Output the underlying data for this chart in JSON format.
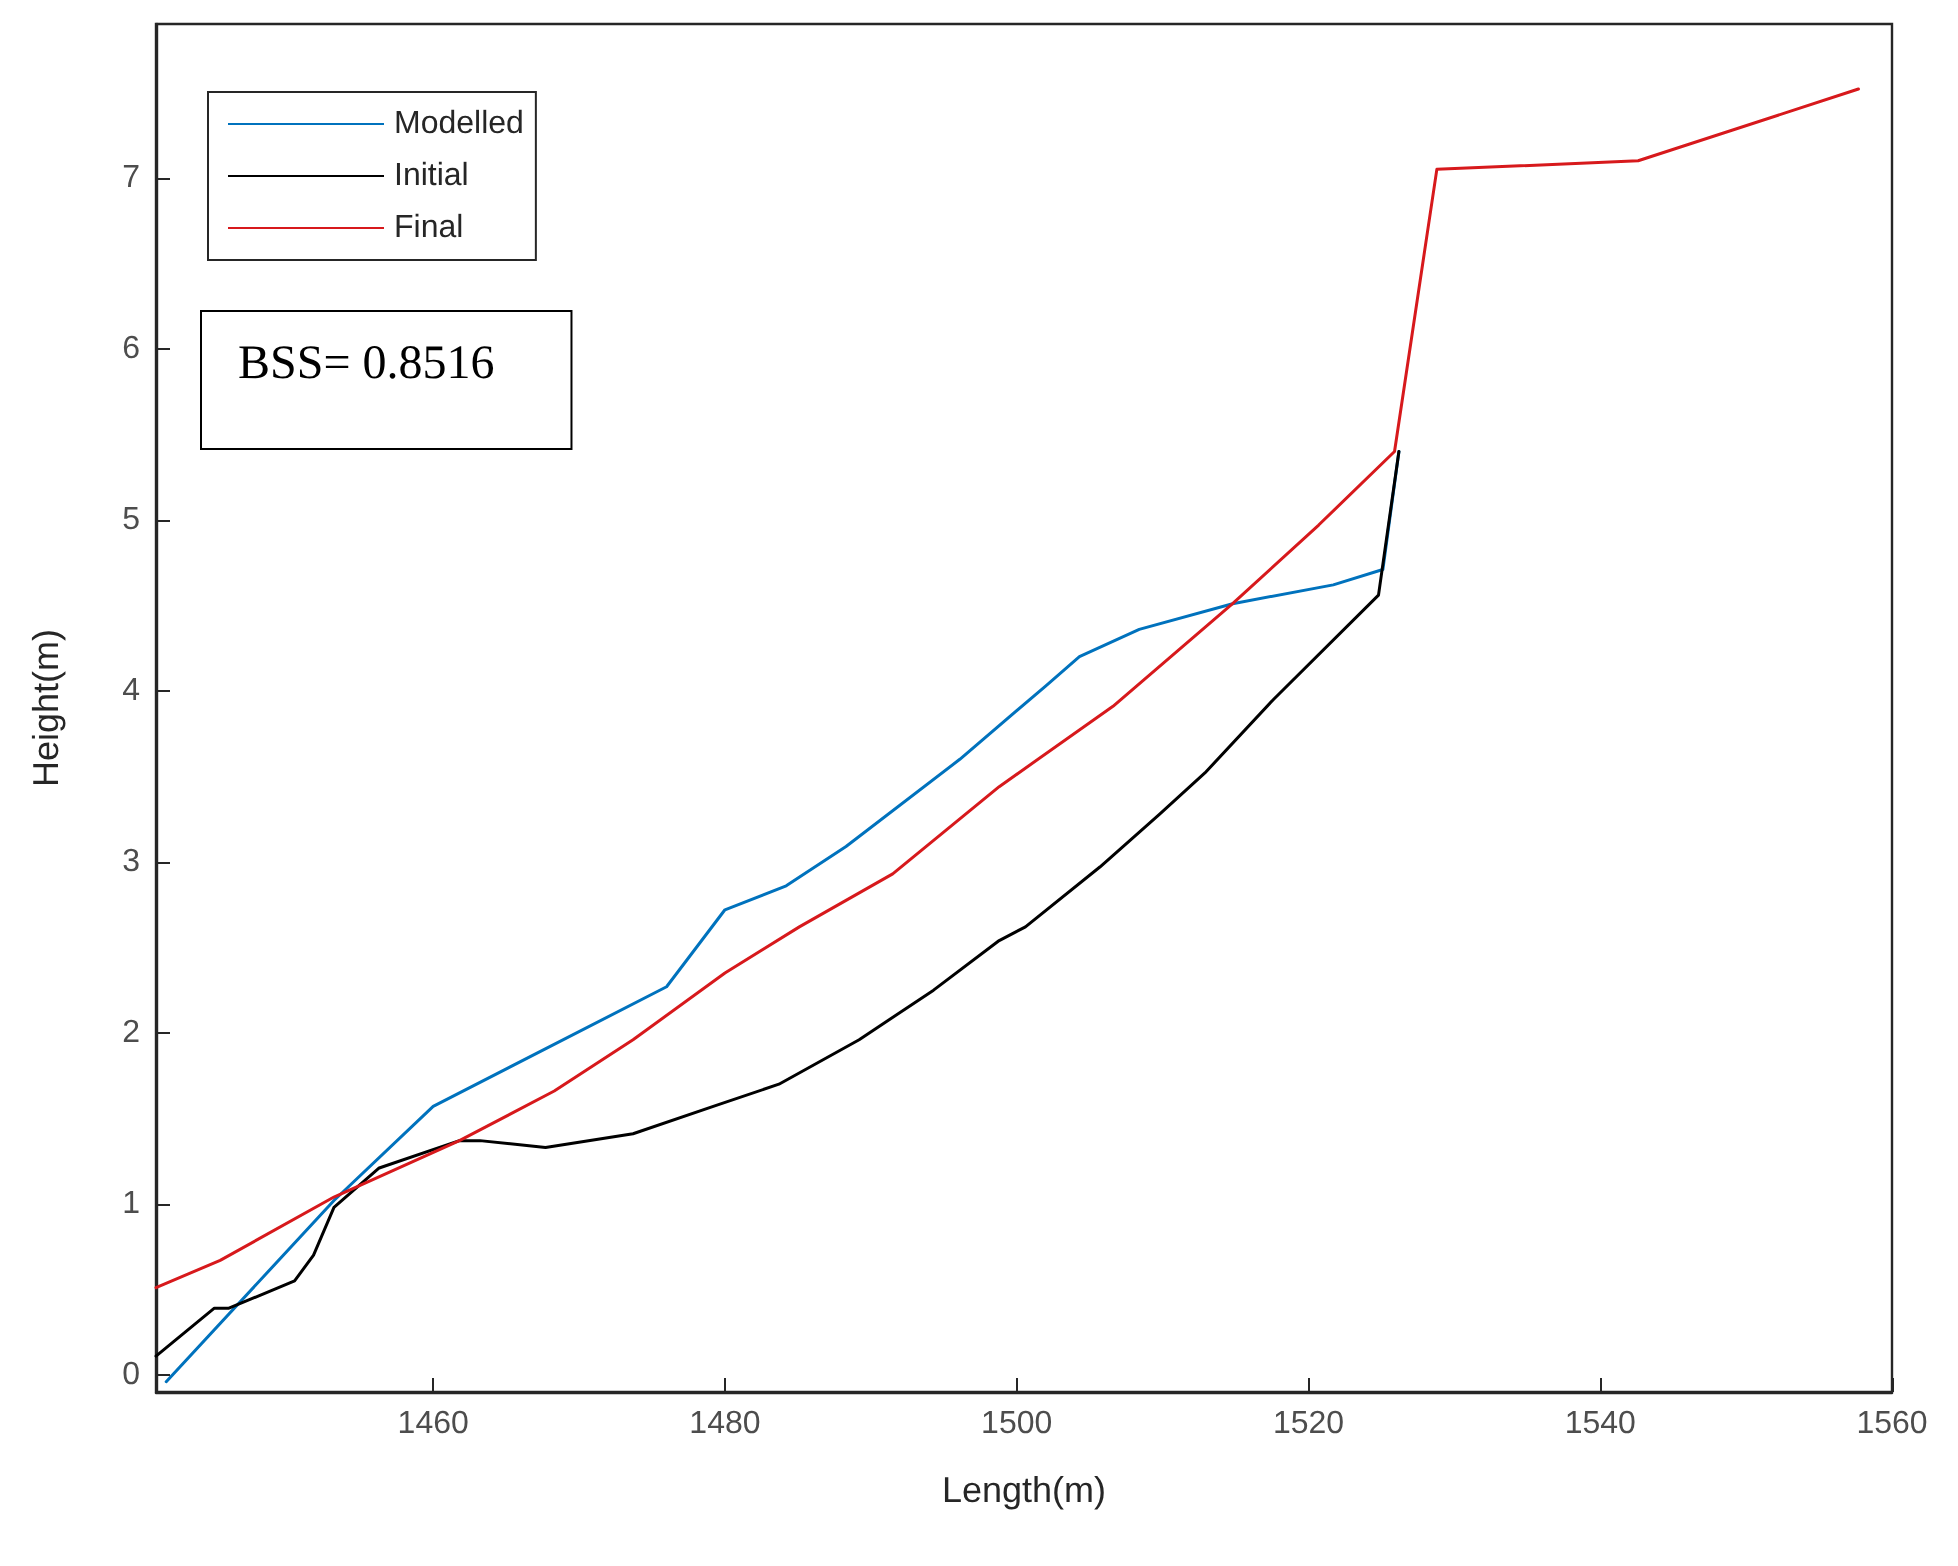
{
  "chart_data": {
    "type": "line",
    "xlabel": "Length(m)",
    "ylabel": "Height(m)",
    "xlim": [
      1441,
      1560
    ],
    "xticks": [
      1460,
      1480,
      1500,
      1520,
      1540,
      1560
    ],
    "ylim": [
      -0.1,
      7.9
    ],
    "yticks": [
      0,
      1,
      2,
      3,
      4,
      5,
      6,
      7
    ],
    "grid": false,
    "legend": "top left",
    "marker": "none",
    "line_style": "solid",
    "annotations": [
      "BSS= 0.8516"
    ],
    "series": [
      {
        "name": "Modelled",
        "color": "#0072bd",
        "x": [
          1441.7,
          1453.2,
          1460,
          1476,
          1480,
          1484.2,
          1488.3,
          1496.1,
          1502,
          1504.3,
          1508.4,
          1514.8,
          1521.7,
          1525.1,
          1526.2
        ],
        "values": [
          -0.04,
          1.02,
          1.57,
          2.27,
          2.72,
          2.86,
          3.09,
          3.6,
          4.03,
          4.2,
          4.36,
          4.51,
          4.62,
          4.71,
          5.4
        ]
      },
      {
        "name": "Initial",
        "color": "#000000",
        "x": [
          1441,
          1445,
          1446,
          1450.5,
          1451.8,
          1453.2,
          1456.3,
          1461.8,
          1463.2,
          1467.7,
          1473.7,
          1479.2,
          1483.7,
          1489.2,
          1494.3,
          1498.8,
          1500.6,
          1505.7,
          1509.8,
          1512.9,
          1517.6,
          1524.8,
          1526.2
        ],
        "values": [
          0.11,
          0.39,
          0.39,
          0.55,
          0.7,
          0.98,
          1.21,
          1.37,
          1.37,
          1.33,
          1.41,
          1.57,
          1.7,
          1.96,
          2.25,
          2.54,
          2.62,
          2.97,
          3.28,
          3.52,
          3.95,
          4.56,
          5.4
        ]
      },
      {
        "name": "Final",
        "color": "#d7191c",
        "x": [
          1441,
          1445.4,
          1453.2,
          1461.8,
          1468.3,
          1473.7,
          1480,
          1485.1,
          1491.5,
          1498.8,
          1506.6,
          1514.8,
          1520.7,
          1525.9,
          1528.8,
          1542.6,
          1557.7
        ],
        "values": [
          0.51,
          0.67,
          1.04,
          1.37,
          1.66,
          1.96,
          2.35,
          2.62,
          2.93,
          3.44,
          3.91,
          4.51,
          4.97,
          5.4,
          7.05,
          7.1,
          7.52
        ]
      }
    ]
  }
}
